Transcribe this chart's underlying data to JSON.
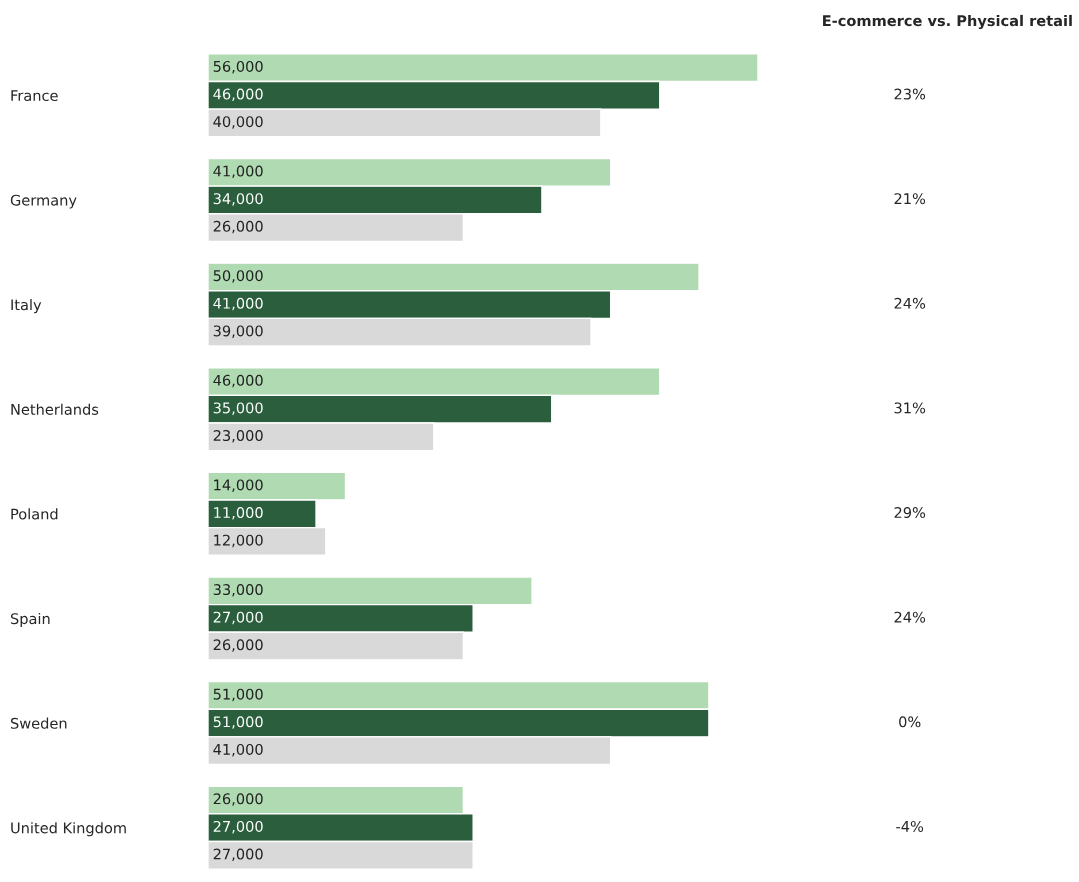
{
  "chart_data": [
    {
      "type": "bar",
      "orientation": "horizontal",
      "categories": [
        "France",
        "Germany",
        "Italy",
        "Netherlands",
        "Poland",
        "Spain",
        "Sweden",
        "United Kingdom"
      ],
      "series": [
        {
          "color": "#b0dab2",
          "values": [
            56000,
            41000,
            50000,
            46000,
            14000,
            33000,
            51000,
            26000
          ],
          "value_labels": [
            "56,000",
            "41,000",
            "50,000",
            "46,000",
            "14,000",
            "33,000",
            "51,000",
            "26,000"
          ]
        },
        {
          "color": "#2a5e3c",
          "values": [
            46000,
            34000,
            41000,
            35000,
            11000,
            27000,
            51000,
            27000
          ],
          "value_labels": [
            "46,000",
            "34,000",
            "41,000",
            "35,000",
            "11,000",
            "27,000",
            "51,000",
            "27,000"
          ]
        },
        {
          "color": "#d9d9d9",
          "values": [
            40000,
            26000,
            39000,
            23000,
            12000,
            26000,
            41000,
            27000
          ],
          "value_labels": [
            "40,000",
            "26,000",
            "39,000",
            "23,000",
            "12,000",
            "26,000",
            "41,000",
            "27,000"
          ]
        }
      ]
    },
    {
      "type": "other",
      "title": "E-commerce vs. Physical retail",
      "categories": [
        null,
        null,
        null,
        null,
        null,
        null,
        null,
        null
      ],
      "value_labels": [
        "23%",
        "21%",
        "24%",
        "31%",
        "29%",
        "24%",
        "0%",
        "-4%"
      ]
    }
  ]
}
